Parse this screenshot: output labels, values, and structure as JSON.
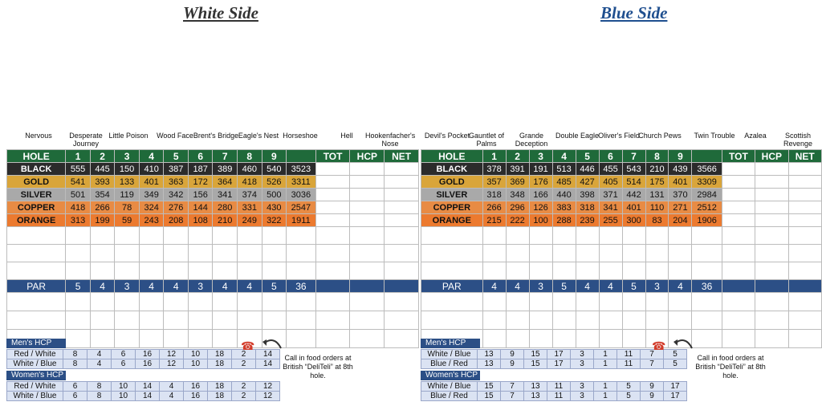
{
  "titles": {
    "white": "White Side",
    "blue": "Blue Side"
  },
  "white_holes": [
    {
      "num": "1",
      "name": "Nervous"
    },
    {
      "num": "2",
      "name": "Desperate Journey"
    },
    {
      "num": "3",
      "name": "Little Poison"
    },
    {
      "num": "4",
      "name": "Wood Face"
    },
    {
      "num": "5",
      "name": "Brent's Bridge"
    },
    {
      "num": "6",
      "name": "Eagle's Nest"
    },
    {
      "num": "7",
      "name": "Horseshoe"
    },
    {
      "num": "8",
      "name": "Hell"
    },
    {
      "num": "9",
      "name": "Hookenfacher's Nose"
    }
  ],
  "blue_holes": [
    {
      "num": "1",
      "name": "Devil's Pocket"
    },
    {
      "num": "2",
      "name": "Gauntlet of Palms"
    },
    {
      "num": "3",
      "name": "Grande Deception"
    },
    {
      "num": "4",
      "name": "Double Eagle"
    },
    {
      "num": "5",
      "name": "Oliver's Field"
    },
    {
      "num": "6",
      "name": "Church Pews"
    },
    {
      "num": "7",
      "name": "Twin Trouble"
    },
    {
      "num": "8",
      "name": "Azalea"
    },
    {
      "num": "9",
      "name": "Scottish Revenge"
    }
  ],
  "headers": {
    "hole": "HOLE",
    "par": "PAR",
    "tot": "TOT",
    "hcp": "HCP",
    "net": "NET",
    "holes": [
      "1",
      "2",
      "3",
      "4",
      "5",
      "6",
      "7",
      "8",
      "9"
    ]
  },
  "white_card": {
    "tees": [
      {
        "tee": "BLACK",
        "values": [
          "555",
          "445",
          "150",
          "410",
          "387",
          "187",
          "389",
          "460",
          "540",
          "3523"
        ]
      },
      {
        "tee": "GOLD",
        "values": [
          "541",
          "393",
          "133",
          "401",
          "363",
          "172",
          "364",
          "418",
          "526",
          "3311"
        ]
      },
      {
        "tee": "SILVER",
        "values": [
          "501",
          "354",
          "119",
          "349",
          "342",
          "156",
          "341",
          "374",
          "500",
          "3036"
        ]
      },
      {
        "tee": "COPPER",
        "values": [
          "418",
          "266",
          "78",
          "324",
          "276",
          "144",
          "280",
          "331",
          "430",
          "2547"
        ]
      },
      {
        "tee": "ORANGE",
        "values": [
          "313",
          "199",
          "59",
          "243",
          "208",
          "108",
          "210",
          "249",
          "322",
          "1911"
        ]
      }
    ],
    "par": [
      "5",
      "4",
      "3",
      "4",
      "4",
      "3",
      "4",
      "4",
      "5",
      "36"
    ]
  },
  "blue_card": {
    "tees": [
      {
        "tee": "BLACK",
        "values": [
          "378",
          "391",
          "191",
          "513",
          "446",
          "455",
          "543",
          "210",
          "439",
          "3566"
        ]
      },
      {
        "tee": "GOLD",
        "values": [
          "357",
          "369",
          "176",
          "485",
          "427",
          "405",
          "514",
          "175",
          "401",
          "3309"
        ]
      },
      {
        "tee": "SILVER",
        "values": [
          "318",
          "348",
          "166",
          "440",
          "398",
          "371",
          "442",
          "131",
          "370",
          "2984"
        ]
      },
      {
        "tee": "COPPER",
        "values": [
          "266",
          "296",
          "126",
          "383",
          "318",
          "341",
          "401",
          "110",
          "271",
          "2512"
        ]
      },
      {
        "tee": "ORANGE",
        "values": [
          "215",
          "222",
          "100",
          "288",
          "239",
          "255",
          "300",
          "83",
          "204",
          "1906"
        ]
      }
    ],
    "par": [
      "4",
      "4",
      "3",
      "5",
      "4",
      "4",
      "5",
      "3",
      "4",
      "36"
    ]
  },
  "white_hcp": {
    "mens_label": "Men's HCP",
    "womens_label": "Women's HCP",
    "mens": [
      {
        "label": "Red / White",
        "values": [
          "8",
          "4",
          "6",
          "16",
          "12",
          "10",
          "18",
          "2",
          "14"
        ]
      },
      {
        "label": "White / Blue",
        "values": [
          "8",
          "4",
          "6",
          "16",
          "12",
          "10",
          "18",
          "2",
          "14"
        ]
      }
    ],
    "womens": [
      {
        "label": "Red / White",
        "values": [
          "6",
          "8",
          "10",
          "14",
          "4",
          "16",
          "18",
          "2",
          "12"
        ]
      },
      {
        "label": "White / Blue",
        "values": [
          "6",
          "8",
          "10",
          "14",
          "4",
          "16",
          "18",
          "2",
          "12"
        ]
      }
    ]
  },
  "blue_hcp": {
    "mens_label": "Men's HCP",
    "womens_label": "Women's HCP",
    "mens": [
      {
        "label": "White / Blue",
        "values": [
          "13",
          "9",
          "15",
          "17",
          "3",
          "1",
          "11",
          "7",
          "5"
        ]
      },
      {
        "label": "Blue / Red",
        "values": [
          "13",
          "9",
          "15",
          "17",
          "3",
          "1",
          "11",
          "7",
          "5"
        ]
      }
    ],
    "womens": [
      {
        "label": "White / Blue",
        "values": [
          "15",
          "7",
          "13",
          "11",
          "3",
          "1",
          "5",
          "9",
          "17"
        ]
      },
      {
        "label": "Blue / Red",
        "values": [
          "15",
          "7",
          "13",
          "11",
          "3",
          "1",
          "5",
          "9",
          "17"
        ]
      }
    ]
  },
  "food_note": "Call in food orders at British “DeliTeli” at 8th hole.",
  "colors": {
    "green": "#1f6a3a",
    "black": "#2b2b2b",
    "gold": "#d9a53a",
    "silver": "#a9a9a9",
    "copper": "#e88b44",
    "orange": "#ec7a2f",
    "navy": "#2c4f86"
  }
}
